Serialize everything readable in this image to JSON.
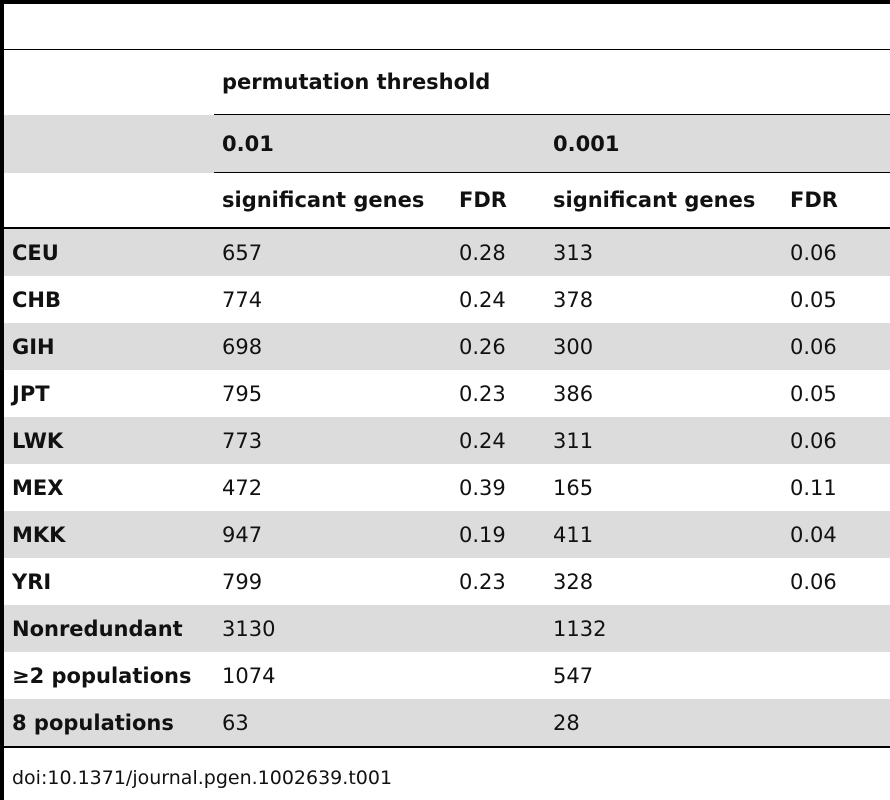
{
  "table": {
    "group_header": "permutation threshold",
    "thresholds": [
      "0.01",
      "0.001"
    ],
    "col_headers": [
      "significant genes",
      "FDR",
      "significant genes",
      "FDR"
    ],
    "rows": [
      {
        "label": "CEU",
        "c1": "657",
        "c2": "0.28",
        "c3": "313",
        "c4": "0.06"
      },
      {
        "label": "CHB",
        "c1": "774",
        "c2": "0.24",
        "c3": "378",
        "c4": "0.05"
      },
      {
        "label": "GIH",
        "c1": "698",
        "c2": "0.26",
        "c3": "300",
        "c4": "0.06"
      },
      {
        "label": "JPT",
        "c1": "795",
        "c2": "0.23",
        "c3": "386",
        "c4": "0.05"
      },
      {
        "label": "LWK",
        "c1": "773",
        "c2": "0.24",
        "c3": "311",
        "c4": "0.06"
      },
      {
        "label": "MEX",
        "c1": "472",
        "c2": "0.39",
        "c3": "165",
        "c4": "0.11"
      },
      {
        "label": "MKK",
        "c1": "947",
        "c2": "0.19",
        "c3": "411",
        "c4": "0.04"
      },
      {
        "label": "YRI",
        "c1": "799",
        "c2": "0.23",
        "c3": "328",
        "c4": "0.06"
      },
      {
        "label": "Nonredundant",
        "c1": "3130",
        "c2": "",
        "c3": "1132",
        "c4": ""
      },
      {
        "label": "≥2 populations",
        "c1": "1074",
        "c2": "",
        "c3": "547",
        "c4": ""
      },
      {
        "label": "8 populations",
        "c1": "63",
        "c2": "",
        "c3": "28",
        "c4": ""
      }
    ]
  },
  "footer": {
    "doi": "doi:10.1371/journal.pgen.1002639.t001"
  }
}
